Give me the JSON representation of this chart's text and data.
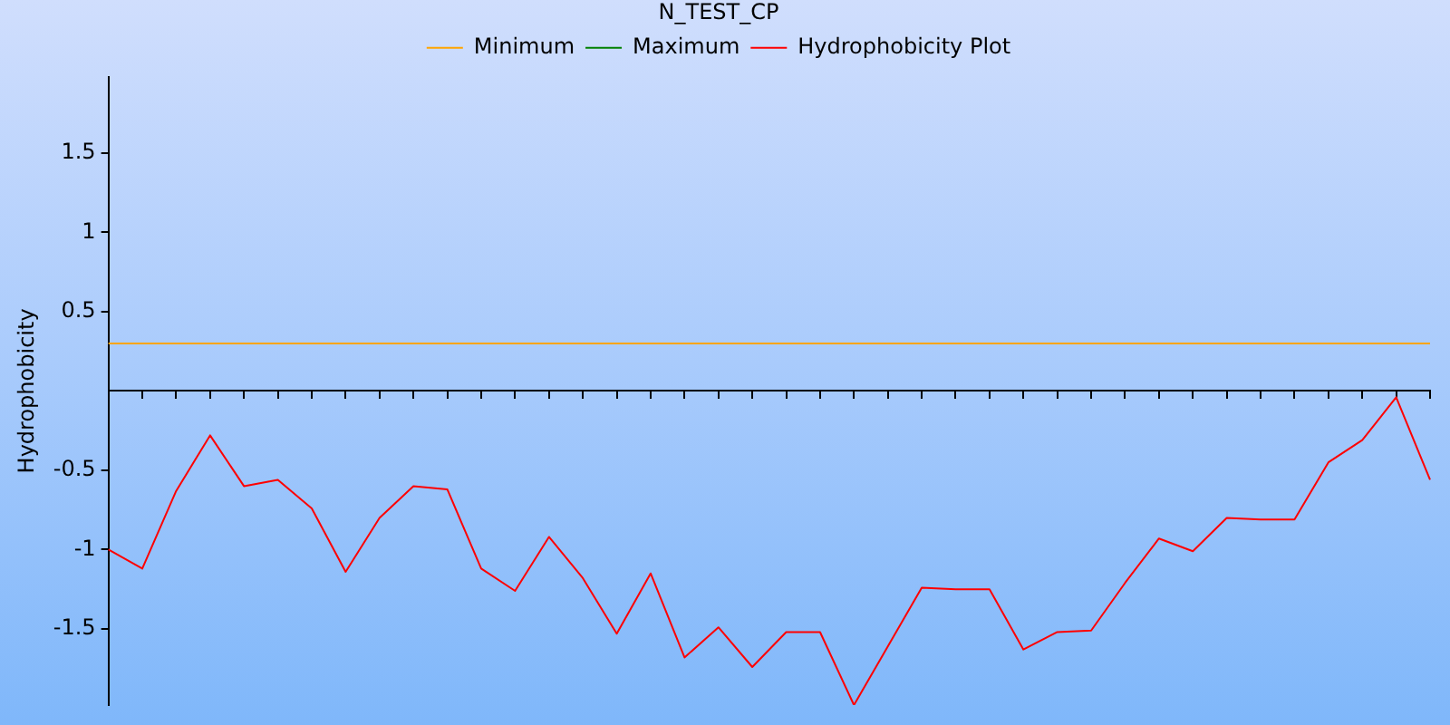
{
  "chart_data": {
    "type": "line",
    "title": "N_TEST_CP",
    "ylabel": "Hydrophobicity",
    "categories": [
      null,
      null,
      null,
      null,
      null,
      null,
      null,
      null,
      null,
      null,
      null,
      null,
      null,
      null,
      null,
      null,
      null,
      null,
      null,
      null,
      null,
      null,
      null,
      null,
      null,
      null,
      null,
      null,
      null,
      null,
      null,
      null,
      null,
      null,
      null,
      null,
      null,
      null,
      null,
      null
    ],
    "series": [
      {
        "name": "Minimum",
        "color": "#ffa500",
        "values": [
          0.3,
          0.3,
          0.3,
          0.3,
          0.3,
          0.3,
          0.3,
          0.3,
          0.3,
          0.3,
          0.3,
          0.3,
          0.3,
          0.3,
          0.3,
          0.3,
          0.3,
          0.3,
          0.3,
          0.3,
          0.3,
          0.3,
          0.3,
          0.3,
          0.3,
          0.3,
          0.3,
          0.3,
          0.3,
          0.3,
          0.3,
          0.3,
          0.3,
          0.3,
          0.3,
          0.3,
          0.3,
          0.3,
          0.3,
          0.3
        ]
      },
      {
        "name": "Maximum",
        "color": "#008000",
        "values": [
          null,
          null,
          null,
          null,
          null,
          null,
          null,
          null,
          null,
          null,
          null,
          null,
          null,
          null,
          null,
          null,
          null,
          null,
          null,
          null,
          null,
          null,
          null,
          null,
          null,
          null,
          null,
          null,
          null,
          null,
          null,
          null,
          null,
          null,
          null,
          null,
          null,
          null,
          null,
          null
        ]
      },
      {
        "name": "Hydrophobicity Plot",
        "color": "#ff0000",
        "values": [
          -1.0,
          -1.12,
          -0.63,
          -0.28,
          -0.6,
          -0.56,
          -0.74,
          -1.14,
          -0.8,
          -0.6,
          -0.62,
          -1.12,
          -1.26,
          -0.92,
          -1.18,
          -1.53,
          -1.15,
          -1.68,
          -1.49,
          -1.74,
          -1.52,
          -1.52,
          -1.98,
          -1.61,
          -1.24,
          -1.25,
          -1.25,
          -1.63,
          -1.52,
          -1.51,
          -1.21,
          -0.93,
          -1.01,
          -0.8,
          -0.81,
          -0.81,
          -0.45,
          -0.31,
          -0.04,
          -0.56
        ]
      }
    ],
    "ylim": [
      -1.98,
      1.98
    ],
    "yticks": [
      -1.5,
      -1,
      -0.5,
      0.5,
      1,
      1.5
    ],
    "grid": false,
    "legend": "top",
    "tick_labels": "y",
    "marker": "none",
    "line_style": "solid"
  }
}
